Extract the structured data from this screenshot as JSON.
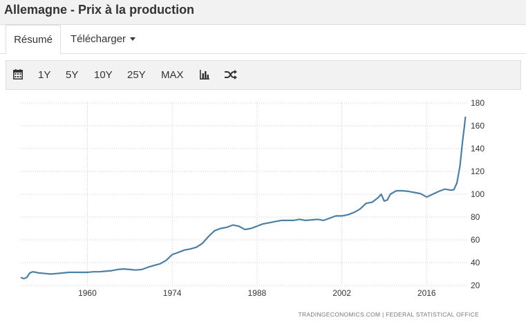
{
  "header": {
    "title": "Allemagne - Prix à la production"
  },
  "tabs": [
    {
      "label": "Résumé",
      "active": true
    },
    {
      "label": "Télécharger",
      "active": false
    }
  ],
  "toolbar": {
    "calendar_icon": "calendar-icon",
    "ranges": [
      "1Y",
      "5Y",
      "10Y",
      "25Y",
      "MAX"
    ],
    "bar_chart_icon": "bar-chart-icon",
    "shuffle_icon": "shuffle-icon"
  },
  "colors": {
    "line": "#4a7fa8",
    "grid": "#cccccc",
    "panel": "#f2f2f2"
  },
  "chart_data": {
    "type": "line",
    "title": "",
    "xlabel": "",
    "ylabel": "",
    "xlim": [
      1949,
      2022.7
    ],
    "ylim": [
      20,
      180
    ],
    "x_ticks": [
      1960,
      1974,
      1988,
      2002,
      2016
    ],
    "y_ticks": [
      20,
      40,
      60,
      80,
      100,
      120,
      140,
      160,
      180
    ],
    "y_axis_side": "right",
    "grid": true,
    "source": "TRADINGECONOMICS.COM  |  FEDERAL STATISTICAL OFFICE",
    "series": [
      {
        "x": [
          1949.0,
          1949.5,
          1950.0,
          1950.5,
          1951.0,
          1951.5,
          1952.0,
          1953.0,
          1954.0,
          1955.0,
          1956.0,
          1957.0,
          1958.0,
          1959.0,
          1960.0,
          1961.0,
          1962.0,
          1963.0,
          1964.0,
          1965.0,
          1966.0,
          1967.0,
          1968.0,
          1969.0,
          1970.0,
          1971.0,
          1972.0,
          1973.0,
          1974.0,
          1975.0,
          1976.0,
          1977.0,
          1978.0,
          1979.0,
          1980.0,
          1981.0,
          1982.0,
          1983.0,
          1984.0,
          1985.0,
          1986.0,
          1987.0,
          1988.0,
          1989.0,
          1990.0,
          1991.0,
          1992.0,
          1993.0,
          1994.0,
          1995.0,
          1996.0,
          1997.0,
          1998.0,
          1999.0,
          2000.0,
          2001.0,
          2002.0,
          2003.0,
          2004.0,
          2005.0,
          2006.0,
          2007.0,
          2008.0,
          2008.5,
          2009.0,
          2009.5,
          2010.0,
          2011.0,
          2012.0,
          2013.0,
          2014.0,
          2015.0,
          2016.0,
          2017.0,
          2018.0,
          2019.0,
          2020.0,
          2020.5,
          2021.0,
          2021.5,
          2021.8,
          2022.0,
          2022.2,
          2022.4
        ],
        "y": [
          27,
          26,
          27,
          31,
          32,
          31.5,
          31,
          30.5,
          30,
          30.5,
          31,
          31.5,
          31.5,
          31.5,
          31.5,
          32,
          32,
          32.5,
          33,
          34,
          34.5,
          34,
          33.5,
          34,
          36,
          37.5,
          39,
          42,
          47,
          49,
          51,
          52,
          53.5,
          57,
          63,
          68,
          70,
          71,
          73,
          72,
          69,
          70,
          72,
          74,
          75,
          76,
          77,
          77,
          77,
          78,
          77,
          77.5,
          78,
          77,
          79,
          81,
          81,
          82,
          84,
          87,
          92,
          93,
          97,
          100,
          94,
          95,
          100,
          103,
          103,
          102.5,
          101.5,
          100.5,
          97.5,
          100,
          102.5,
          104.5,
          103.5,
          104,
          110,
          125,
          140,
          150,
          158,
          168
        ]
      }
    ]
  }
}
